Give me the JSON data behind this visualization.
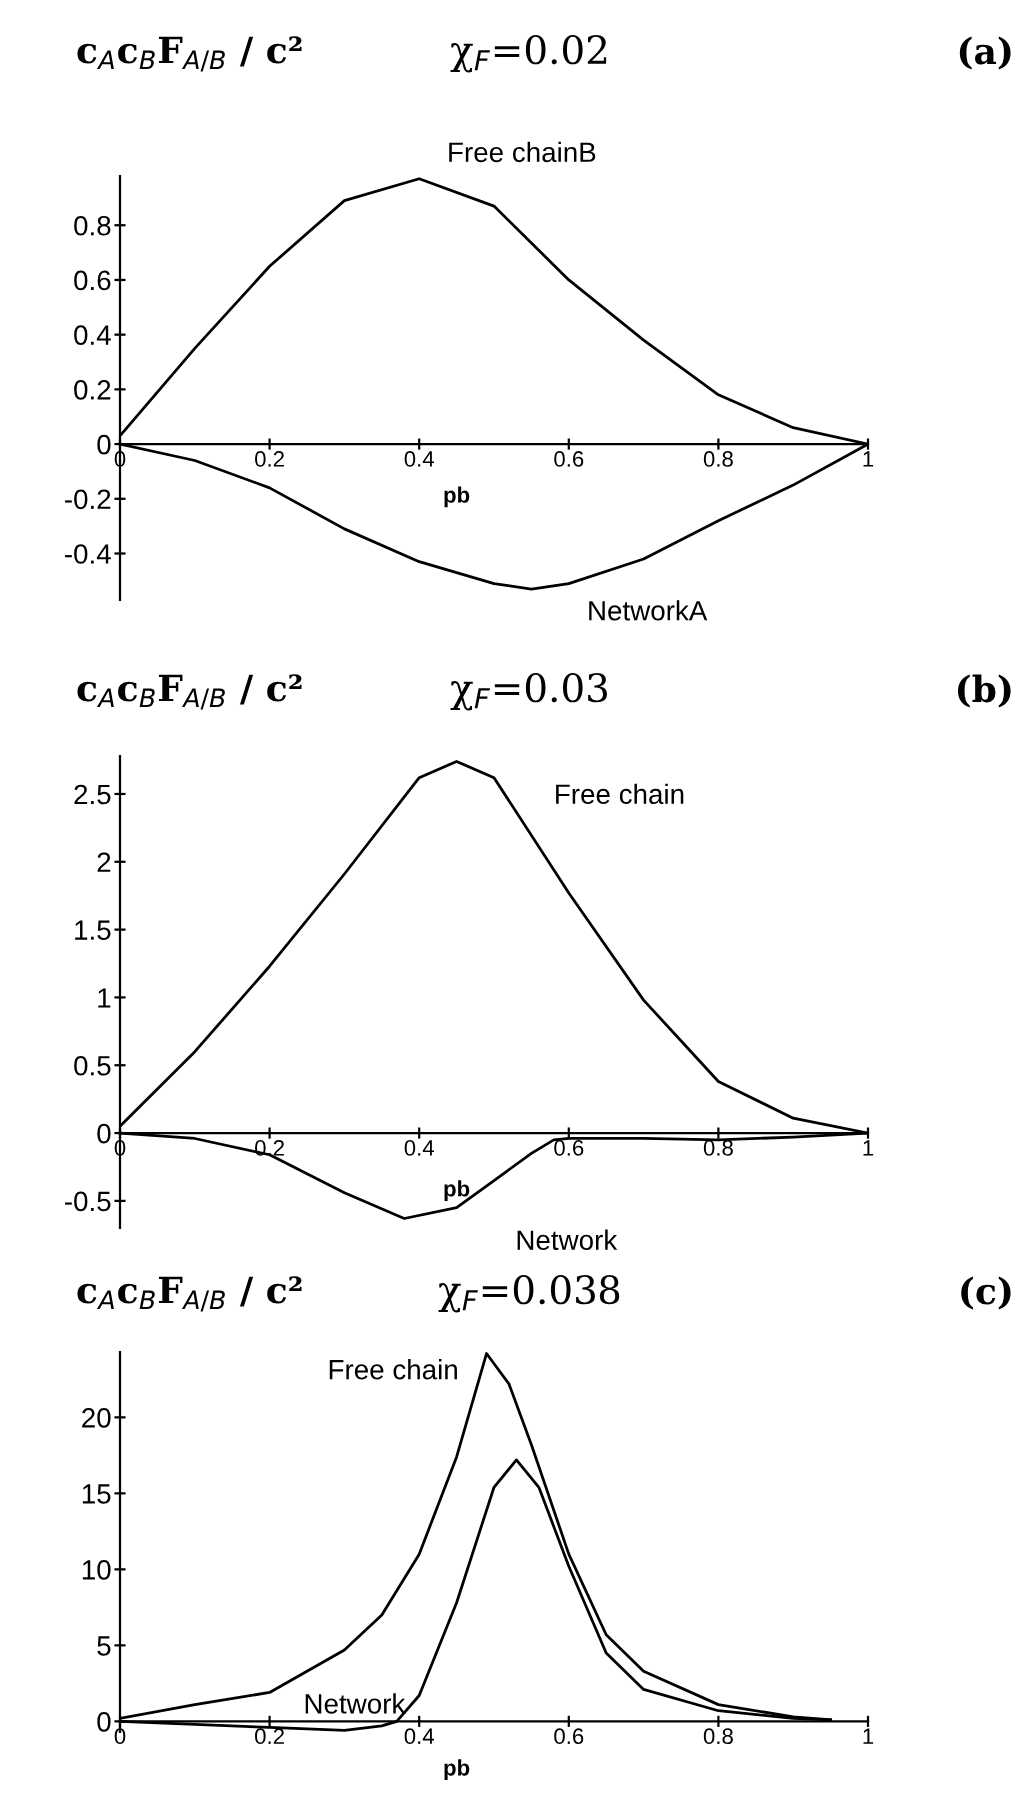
{
  "chart_data": [
    {
      "type": "line",
      "ylabel": "c$_{A}$c$_{B}$F$_{A/B}$ / c²",
      "title": "χ$_{F}$=0.02",
      "annotations": [
        "(a)"
      ],
      "xlabel": "pb",
      "xlim": [
        0,
        1
      ],
      "ylim": [
        -0.57,
        0.98
      ],
      "xticks": [
        0,
        0.2,
        0.4,
        0.6,
        0.8,
        1
      ],
      "yticks": [
        -0.4,
        -0.2,
        0,
        0.2,
        0.4,
        0.6,
        0.8
      ],
      "grid": false,
      "legend": false,
      "marker": "none",
      "line_style": "solid",
      "series": [
        {
          "name": "Free chainB",
          "color": "#000000",
          "x": [
            0,
            0.1,
            0.2,
            0.3,
            0.4,
            0.5,
            0.6,
            0.7,
            0.8,
            0.9,
            1
          ],
          "values": [
            0.03,
            0.35,
            0.65,
            0.89,
            0.97,
            0.87,
            0.6,
            0.38,
            0.18,
            0.06,
            0
          ]
        },
        {
          "name": "NetworkA",
          "color": "#000000",
          "x": [
            0,
            0.1,
            0.2,
            0.3,
            0.4,
            0.5,
            0.55,
            0.6,
            0.7,
            0.8,
            0.9,
            1
          ],
          "values": [
            0,
            -0.06,
            -0.16,
            -0.31,
            -0.43,
            -0.51,
            -0.53,
            -0.51,
            -0.42,
            -0.28,
            -0.15,
            0
          ]
        }
      ]
    },
    {
      "type": "line",
      "ylabel": "c$_{A}$c$_{B}$F$_{A/B}$ / c²",
      "title": "χ$_{F}$=0.03",
      "annotations": [
        "(b)"
      ],
      "xlabel": "pb",
      "xlim": [
        0,
        1
      ],
      "ylim": [
        -0.7,
        2.78
      ],
      "xticks": [
        0,
        0.2,
        0.4,
        0.6,
        0.8,
        1
      ],
      "yticks": [
        -0.5,
        0,
        0.5,
        1,
        1.5,
        2,
        2.5
      ],
      "grid": false,
      "legend": false,
      "marker": "none",
      "line_style": "solid",
      "series": [
        {
          "name": "Free chain",
          "color": "#000000",
          "x": [
            0,
            0.1,
            0.2,
            0.3,
            0.4,
            0.45,
            0.5,
            0.6,
            0.7,
            0.8,
            0.9,
            1
          ],
          "values": [
            0.05,
            0.6,
            1.23,
            1.91,
            2.62,
            2.74,
            2.62,
            1.77,
            0.98,
            0.38,
            0.11,
            0
          ]
        },
        {
          "name": "Network",
          "color": "#000000",
          "x": [
            0,
            0.1,
            0.2,
            0.3,
            0.38,
            0.45,
            0.5,
            0.55,
            0.58,
            0.6,
            0.7,
            0.8,
            0.9,
            1
          ],
          "values": [
            0,
            -0.04,
            -0.16,
            -0.44,
            -0.63,
            -0.55,
            -0.35,
            -0.15,
            -0.05,
            -0.04,
            -0.04,
            -0.05,
            -0.03,
            0
          ]
        }
      ]
    },
    {
      "type": "line",
      "ylabel": "c$_{A}$c$_{B}$F$_{A/B}$ / c²",
      "title": "χ$_{F}$=0.038",
      "annotations": [
        "(c)"
      ],
      "xlabel": "pb",
      "xlim": [
        0,
        1
      ],
      "ylim": [
        -0.7,
        24.3
      ],
      "xticks": [
        0,
        0.2,
        0.4,
        0.6,
        0.8,
        1
      ],
      "yticks": [
        0,
        5,
        10,
        15,
        20
      ],
      "grid": false,
      "legend": false,
      "marker": "none",
      "line_style": "solid",
      "series": [
        {
          "name": "Free chain",
          "color": "#000000",
          "x": [
            0,
            0.1,
            0.2,
            0.3,
            0.35,
            0.4,
            0.45,
            0.49,
            0.52,
            0.55,
            0.6,
            0.65,
            0.7,
            0.8,
            0.9,
            0.95
          ],
          "values": [
            0.2,
            1.1,
            1.9,
            4.7,
            7,
            11,
            17.4,
            24.2,
            22.2,
            18.2,
            11,
            5.7,
            3.3,
            1.1,
            0.3,
            0.1
          ]
        },
        {
          "name": "Network",
          "color": "#000000",
          "x": [
            0,
            0.1,
            0.2,
            0.3,
            0.35,
            0.37,
            0.4,
            0.45,
            0.5,
            0.53,
            0.56,
            0.6,
            0.65,
            0.7,
            0.8,
            0.9,
            0.95
          ],
          "values": [
            0,
            -0.2,
            -0.4,
            -0.6,
            -0.3,
            0,
            1.7,
            7.8,
            15.4,
            17.2,
            15.4,
            10.2,
            4.5,
            2.1,
            0.7,
            0.2,
            0.1
          ]
        }
      ]
    }
  ]
}
